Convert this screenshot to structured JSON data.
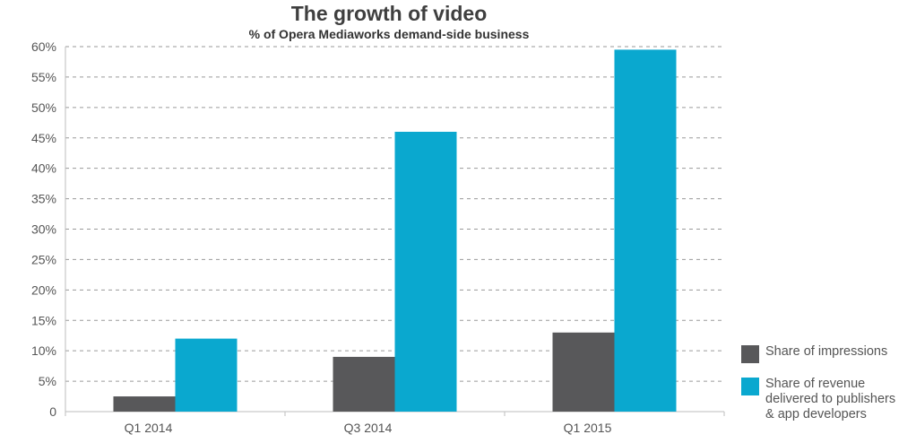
{
  "chart_data": {
    "type": "bar",
    "title": "The growth of video",
    "subtitle": "% of Opera Mediaworks demand-side business",
    "categories": [
      "Q1 2014",
      "Q3  2014",
      "Q1 2015"
    ],
    "series": [
      {
        "name": "Share of impressions",
        "color": "#58585a",
        "values": [
          2.5,
          9,
          13
        ]
      },
      {
        "name": "Share of revenue delivered to publishers & app developers",
        "color": "#0aa8cf",
        "values": [
          12,
          46,
          59.5
        ]
      }
    ],
    "ylim": [
      0,
      60
    ],
    "yticks": [
      0,
      5,
      10,
      15,
      20,
      25,
      30,
      35,
      40,
      45,
      50,
      55,
      60
    ],
    "ytick_labels": [
      "0",
      "5%",
      "10%",
      "15%",
      "20%",
      "25%",
      "30%",
      "35%",
      "40%",
      "45%",
      "50%",
      "55%",
      "60%"
    ],
    "grid": true,
    "legend_position": "bottom-right"
  },
  "legend": {
    "items": [
      {
        "lines": [
          "Share of impressions"
        ]
      },
      {
        "lines": [
          "Share of revenue",
          "delivered to publishers",
          "& app developers"
        ]
      }
    ]
  }
}
